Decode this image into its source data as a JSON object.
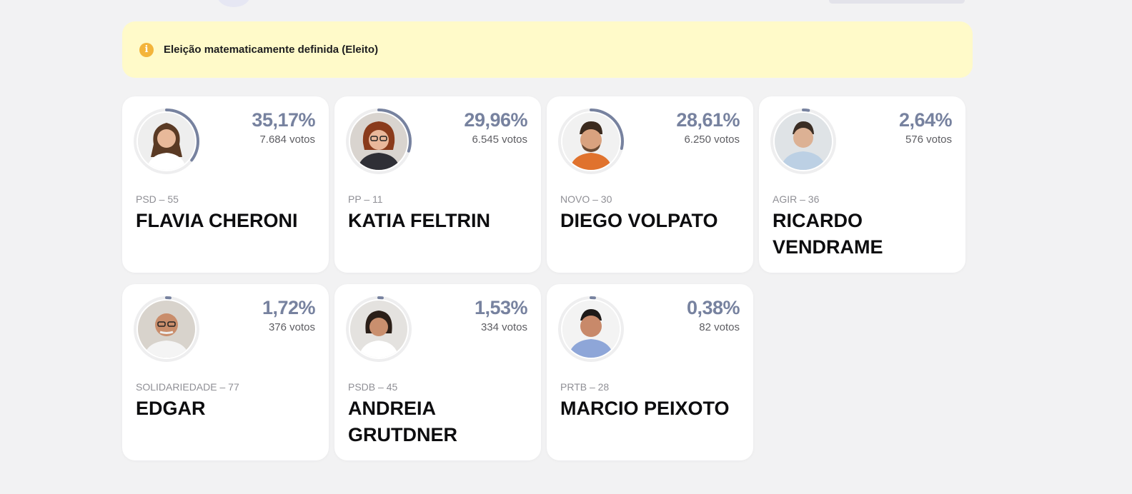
{
  "alert": {
    "icon": "info-icon",
    "text": "Eleição matematicamente definida (Eleito)"
  },
  "colors": {
    "accent": "#77829f",
    "alert_bg": "#fffac9",
    "alert_icon": "#f3b43b"
  },
  "candidates": [
    {
      "pct": "35,17%",
      "votes": "7.684 votos",
      "party": "PSD – 55",
      "name": "FLAVIA CHERONI",
      "share": 0.3517
    },
    {
      "pct": "29,96%",
      "votes": "6.545 votos",
      "party": "PP – 11",
      "name": "KATIA FELTRIN",
      "share": 0.2996
    },
    {
      "pct": "28,61%",
      "votes": "6.250 votos",
      "party": "NOVO – 30",
      "name": "DIEGO VOLPATO",
      "share": 0.2861
    },
    {
      "pct": "2,64%",
      "votes": "576 votos",
      "party": "AGIR – 36",
      "name": "RICARDO VENDRAME",
      "share": 0.0264
    },
    {
      "pct": "1,72%",
      "votes": "376 votos",
      "party": "SOLIDARIEDADE – 77",
      "name": "EDGAR",
      "share": 0.0172
    },
    {
      "pct": "1,53%",
      "votes": "334 votos",
      "party": "PSDB – 45",
      "name": "ANDREIA GRUTDNER",
      "share": 0.0153
    },
    {
      "pct": "0,38%",
      "votes": "82 votos",
      "party": "PRTB – 28",
      "name": "MARCIO PEIXOTO",
      "share": 0.0038
    }
  ]
}
